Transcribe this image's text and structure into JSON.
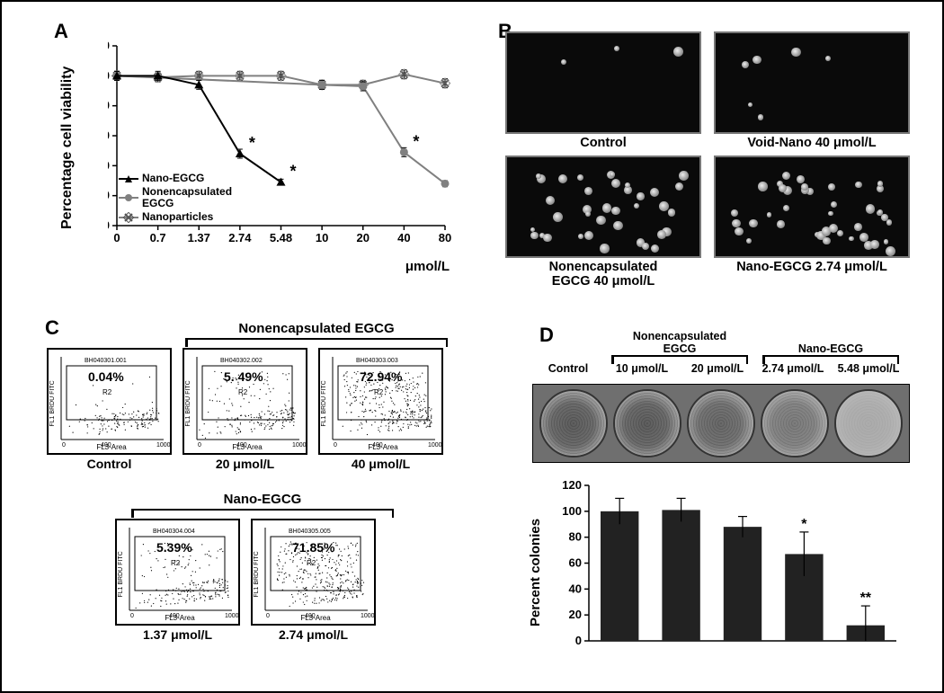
{
  "panels": {
    "A": "A",
    "B": "B",
    "C": "C",
    "D": "D"
  },
  "A": {
    "ylabel": "Percentage cell viability",
    "x_unit": "μmol/L",
    "x_ticks": [
      "0",
      "0.7",
      "1.37",
      "2.74",
      "5.48",
      "10",
      "20",
      "40",
      "80"
    ],
    "y_ticks": [
      0,
      20,
      40,
      60,
      80,
      100,
      120
    ],
    "series": {
      "nano": {
        "label": "Nano-EGCG",
        "color": "#000000",
        "marker": "triangle",
        "points": [
          [
            0,
            100
          ],
          [
            1,
            100
          ],
          [
            2,
            94
          ],
          [
            3,
            48
          ],
          [
            4,
            29
          ]
        ],
        "err": [
          3,
          3,
          3,
          3,
          2
        ],
        "stars": [
          3,
          4
        ]
      },
      "nonenc": {
        "label": "Nonencapsulated\nEGCG",
        "color": "#808080",
        "marker": "circle",
        "points": [
          [
            0,
            100
          ],
          [
            5,
            94
          ],
          [
            6,
            93
          ],
          [
            7,
            49
          ],
          [
            8,
            28
          ]
        ],
        "err": [
          3,
          3,
          3,
          3,
          2
        ],
        "stars": [
          7,
          8
        ]
      },
      "np": {
        "label": "Nanoparticles",
        "color": "#808080",
        "marker": "x",
        "points": [
          [
            0,
            100
          ],
          [
            1,
            99
          ],
          [
            2,
            100
          ],
          [
            3,
            100
          ],
          [
            4,
            100
          ],
          [
            5,
            94
          ],
          [
            6,
            94
          ],
          [
            7,
            101
          ],
          [
            8,
            95
          ]
        ],
        "err": [
          3,
          3,
          3,
          3,
          3,
          3,
          3,
          3,
          3
        ]
      }
    }
  },
  "B": {
    "labels": [
      "Control",
      "Void-Nano 40 μmol/L",
      "Nonencapsulated\nEGCG 40 μmol/L",
      "Nano-EGCG 2.74  μmol/L"
    ],
    "cell_dots": {
      "0": 3,
      "1": 6,
      "2": 38,
      "3": 42
    }
  },
  "C": {
    "group1": "Nonencapsulated EGCG",
    "group2": "Nano-EGCG",
    "plots": [
      {
        "pct": "0.04%",
        "cap": "Control",
        "density": 0.05
      },
      {
        "pct": "5. 49%",
        "cap": "20 μmol/L",
        "density": 0.25
      },
      {
        "pct": "72.94%",
        "cap": "40 μmol/L",
        "density": 0.85
      },
      {
        "pct": "5.39%",
        "cap": "1.37 μmol/L",
        "density": 0.24
      },
      {
        "pct": "71.85%",
        "cap": "2.74 μmol/L",
        "density": 0.83
      }
    ],
    "axis_x": "FL3-Area",
    "axis_y": "FL1 BRDU FITC",
    "gate": "R2"
  },
  "D": {
    "group1": "Nonencapsulated\nEGCG",
    "group2": "Nano-EGCG",
    "col_labels": [
      "Control",
      "10 μmol/L",
      "20 μmol/L",
      "2.74 μmol/L",
      "5.48 μmol/L"
    ],
    "well_density": [
      1.0,
      1.0,
      0.88,
      0.65,
      0.1
    ],
    "ylabel": "Percent colonies",
    "y_ticks": [
      0,
      20,
      40,
      60,
      80,
      100,
      120
    ],
    "bars": [
      {
        "v": 100,
        "err": 10,
        "sig": ""
      },
      {
        "v": 101,
        "err": 9,
        "sig": ""
      },
      {
        "v": 88,
        "err": 8,
        "sig": ""
      },
      {
        "v": 67,
        "err": 17,
        "sig": "*"
      },
      {
        "v": 12,
        "err": 15,
        "sig": "**"
      }
    ],
    "bar_color": "#222222"
  }
}
